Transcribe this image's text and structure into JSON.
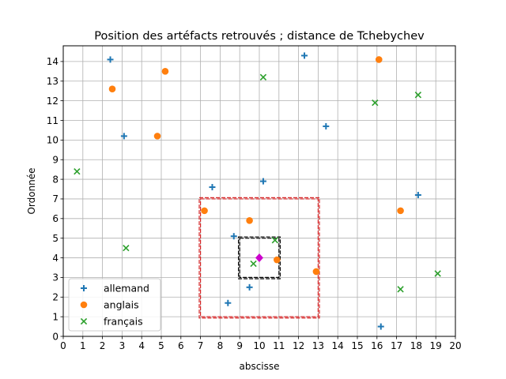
{
  "chart_data": {
    "type": "scatter",
    "title": "Position des artéfacts retrouvés ; distance de Tchebychev",
    "xlabel": "abscisse",
    "ylabel": "Ordonnée",
    "xlim": [
      0,
      20
    ],
    "ylim": [
      0,
      14.8
    ],
    "xticks": [
      "0",
      "1",
      "2",
      "3",
      "4",
      "5",
      "6",
      "7",
      "8",
      "9",
      "10",
      "11",
      "12",
      "13",
      "14",
      "15",
      "16",
      "17",
      "18",
      "19",
      "20"
    ],
    "yticks": [
      "0",
      "1",
      "2",
      "3",
      "4",
      "5",
      "6",
      "7",
      "8",
      "9",
      "10",
      "11",
      "12",
      "13",
      "14"
    ],
    "grid": true,
    "legend_position": "lower-left",
    "series": [
      {
        "name": "allemand",
        "marker": "plus",
        "color": "#1f77b4",
        "points": [
          [
            2.4,
            14.1
          ],
          [
            3.1,
            10.2
          ],
          [
            7.6,
            7.6
          ],
          [
            8.7,
            5.1
          ],
          [
            8.4,
            1.7
          ],
          [
            9.5,
            2.5
          ],
          [
            10.2,
            7.9
          ],
          [
            12.3,
            14.3
          ],
          [
            13.4,
            10.7
          ],
          [
            16.2,
            0.5
          ],
          [
            18.1,
            7.2
          ]
        ]
      },
      {
        "name": "anglais",
        "marker": "circle",
        "color": "#ff7f0e",
        "points": [
          [
            2.5,
            12.6
          ],
          [
            5.2,
            13.5
          ],
          [
            4.8,
            10.2
          ],
          [
            7.2,
            6.4
          ],
          [
            9.5,
            5.9
          ],
          [
            10.9,
            3.9
          ],
          [
            12.9,
            3.3
          ],
          [
            16.1,
            14.1
          ],
          [
            17.2,
            6.4
          ]
        ]
      },
      {
        "name": "français",
        "marker": "x",
        "color": "#2ca02c",
        "points": [
          [
            0.7,
            8.4
          ],
          [
            3.2,
            4.5
          ],
          [
            9.7,
            3.7
          ],
          [
            10.8,
            4.9
          ],
          [
            10.2,
            13.2
          ],
          [
            15.9,
            11.9
          ],
          [
            18.1,
            12.3
          ],
          [
            17.2,
            2.4
          ],
          [
            19.1,
            3.2
          ]
        ]
      }
    ],
    "reference_point": {
      "x": 10,
      "y": 4,
      "color": "#cc00cc",
      "marker": "diamond"
    },
    "squares": [
      {
        "center": [
          10,
          4
        ],
        "half_width": 1,
        "color": "#000000",
        "style": "dashed-double"
      },
      {
        "center": [
          10,
          4
        ],
        "half_width": 3,
        "color": "#d62728",
        "style": "dashed-double"
      }
    ]
  }
}
